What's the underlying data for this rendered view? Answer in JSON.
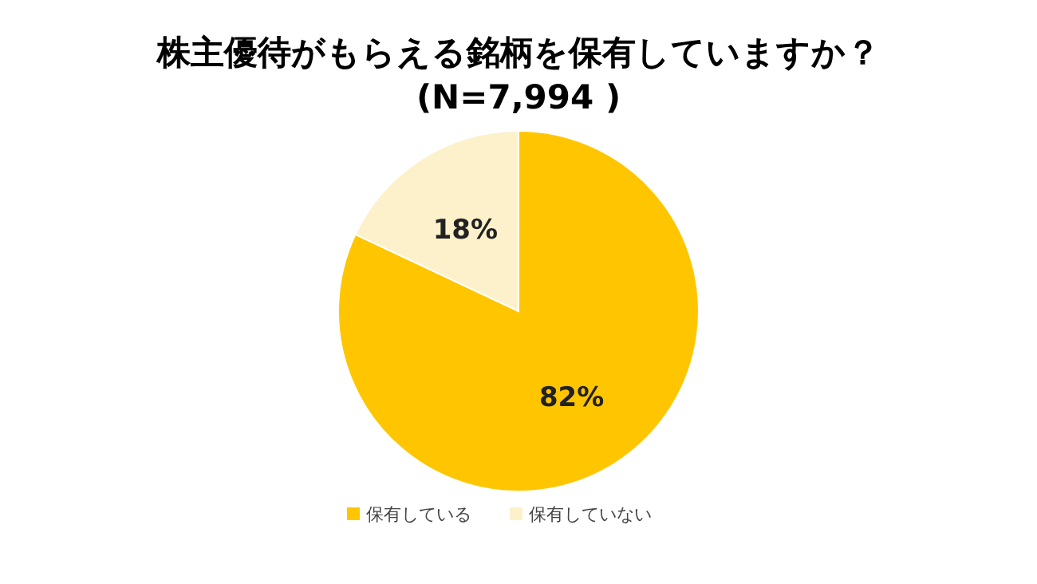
{
  "chart_data": {
    "type": "pie",
    "title": "株主優待がもらえる銘柄を保有していますか？",
    "subtitle": "(N=7,994 )",
    "categories": [
      "保有している",
      "保有していない"
    ],
    "values": [
      82,
      18
    ],
    "colors": [
      "#ffc600",
      "#fdf1cc"
    ],
    "value_labels": [
      "82%",
      "18%"
    ],
    "legend": "bottom"
  }
}
